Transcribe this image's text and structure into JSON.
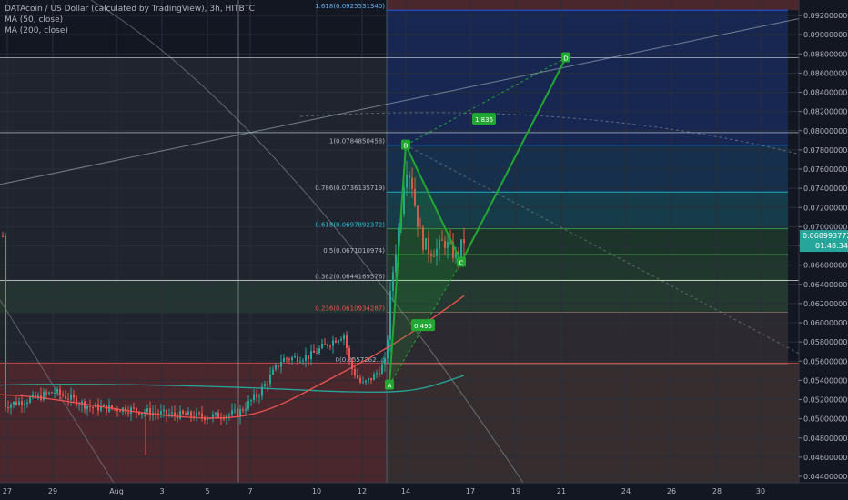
{
  "legend": {
    "symbol_line": "DATAcoin / US Dollar (calculated by TradingView), 3h, HITBTC",
    "ma50": "MA (50, close)",
    "ma200": "MA (200, close)"
  },
  "price_badges": {
    "last_price": "0.0689937720",
    "countdown": "01:48:34"
  },
  "colors": {
    "background": "#131722",
    "up_candle": "#26a69a",
    "down_candle": "#ef5350",
    "ma50": "#ef5350",
    "ma200": "#26a69a",
    "pattern": "#22a832",
    "price_badge": "#26a69a"
  },
  "chart_data": {
    "type": "candlestick",
    "y_axis": {
      "ticks": [
        "0.0920000000",
        "0.0900000000",
        "0.0880000000",
        "0.0860000000",
        "0.0840000000",
        "0.0820000000",
        "0.0800000000",
        "0.0780000000",
        "0.0760000000",
        "0.0740000000",
        "0.0720000000",
        "0.0700000000",
        "0.0680000000",
        "0.0660000000",
        "0.0640000000",
        "0.0620000000",
        "0.0600000000",
        "0.0580000000",
        "0.0560000000",
        "0.0540000000",
        "0.0520000000",
        "0.0500000000",
        "0.0480000000",
        "0.0460000000",
        "0.0440000000"
      ],
      "range": [
        0.0435,
        0.093
      ]
    },
    "x_axis": {
      "ticks": [
        "27",
        "29",
        "Aug",
        "3",
        "5",
        "7",
        "10",
        "12",
        "14",
        "17",
        "19",
        "21",
        "24",
        "26",
        "28",
        "30"
      ]
    },
    "fib_levels": [
      {
        "label": "1.618(0.0925531340)",
        "value": 0.09255
      },
      {
        "label": "1(0.0784850458)",
        "value": 0.07849
      },
      {
        "label": "0.786(0.0736135719)",
        "value": 0.07361
      },
      {
        "label": "0.618(0.0697892372)",
        "value": 0.06979
      },
      {
        "label": "0.5(0.0671010974)",
        "value": 0.0671
      },
      {
        "label": "0.382(0.0644169576)",
        "value": 0.06442
      },
      {
        "label": "0.236(0.0610934287)",
        "value": 0.06109
      },
      {
        "label": "0(0.0557262...)",
        "value": 0.05573
      }
    ],
    "pattern_points": [
      {
        "label": "A",
        "value": 0.0535
      },
      {
        "label": "B",
        "value": 0.0785
      },
      {
        "label": "C",
        "value": 0.0663
      },
      {
        "label": "D",
        "value": 0.0876
      }
    ],
    "pattern_ratios": [
      "1.836",
      "0.495"
    ]
  }
}
